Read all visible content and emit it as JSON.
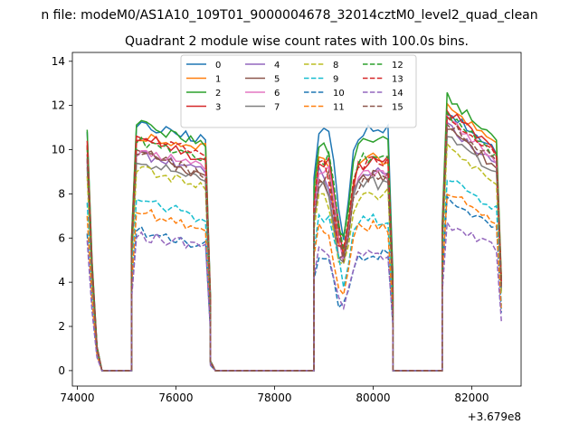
{
  "chart_data": {
    "type": "line",
    "suptitle": "n file: modeM0/AS1A10_109T01_9000004678_32014cztM0_level2_quad_clean",
    "title": "Quadrant 2 module wise count rates with 100.0s bins.",
    "xlabel": "",
    "ylabel": "",
    "x_offset_label": "+3.679e8",
    "xlim": [
      73900,
      83000
    ],
    "ylim": [
      -0.7,
      14.4
    ],
    "x_ticks": [
      74000,
      76000,
      78000,
      80000,
      82000
    ],
    "x_tick_labels": [
      "74000",
      "76000",
      "78000",
      "80000",
      "82000"
    ],
    "y_ticks": [
      0,
      2,
      4,
      6,
      8,
      10,
      12,
      14
    ],
    "y_tick_labels": [
      "0",
      "2",
      "4",
      "6",
      "8",
      "10",
      "12",
      "14"
    ],
    "grid": false,
    "legend": {
      "position": "top-center",
      "columns": 4
    },
    "segments": [
      {
        "x_start": 74200,
        "x_end": 75100,
        "n": 10
      },
      {
        "x_start": 75100,
        "x_end": 76700,
        "n": 17
      },
      {
        "x_start": 76700,
        "x_end": 78800,
        "n": 22
      },
      {
        "x_start": 78800,
        "x_end": 80400,
        "n": 17
      },
      {
        "x_start": 80400,
        "x_end": 81400,
        "n": 11
      },
      {
        "x_start": 81400,
        "x_end": 82600,
        "n": 13
      }
    ],
    "series": [
      {
        "name": "0",
        "color": "#1f77b4",
        "dash": "solid",
        "peaks": [
          10.8,
          11.2,
          10.9,
          11.4
        ]
      },
      {
        "name": "1",
        "color": "#ff7f0e",
        "dash": "solid",
        "peaks": [
          10.2,
          10.8,
          9.6,
          11.7
        ]
      },
      {
        "name": "2",
        "color": "#2ca02c",
        "dash": "solid",
        "peaks": [
          10.9,
          10.9,
          10.4,
          12.0
        ]
      },
      {
        "name": "3",
        "color": "#d62728",
        "dash": "solid",
        "peaks": [
          10.4,
          10.0,
          9.4,
          11.4
        ]
      },
      {
        "name": "4",
        "color": "#9467bd",
        "dash": "solid",
        "peaks": [
          9.5,
          9.7,
          9.0,
          10.7
        ]
      },
      {
        "name": "5",
        "color": "#8c564b",
        "dash": "solid",
        "peaks": [
          9.8,
          9.3,
          8.8,
          10.6
        ]
      },
      {
        "name": "6",
        "color": "#e377c2",
        "dash": "solid",
        "peaks": [
          9.5,
          9.9,
          8.8,
          11.0
        ]
      },
      {
        "name": "7",
        "color": "#7f7f7f",
        "dash": "solid",
        "peaks": [
          9.2,
          9.1,
          8.5,
          10.3
        ]
      },
      {
        "name": "8",
        "color": "#bcbd22",
        "dash": "dashed",
        "peaks": [
          8.8,
          9.0,
          8.0,
          9.8
        ]
      },
      {
        "name": "9",
        "color": "#17becf",
        "dash": "dashed",
        "peaks": [
          7.6,
          7.2,
          6.8,
          8.4
        ]
      },
      {
        "name": "10",
        "color": "#1f77b4",
        "dash": "dashed",
        "peaks": [
          6.2,
          6.0,
          5.2,
          7.5
        ]
      },
      {
        "name": "11",
        "color": "#ff7f0e",
        "dash": "dashed",
        "peaks": [
          7.0,
          6.8,
          6.5,
          7.8
        ]
      },
      {
        "name": "12",
        "color": "#2ca02c",
        "dash": "dashed",
        "peaks": [
          10.1,
          10.1,
          9.7,
          11.2
        ]
      },
      {
        "name": "13",
        "color": "#d62728",
        "dash": "dashed",
        "peaks": [
          10.2,
          10.5,
          9.4,
          11.2
        ]
      },
      {
        "name": "14",
        "color": "#9467bd",
        "dash": "dashed",
        "peaks": [
          5.9,
          6.0,
          5.3,
          6.4
        ]
      },
      {
        "name": "15",
        "color": "#8c564b",
        "dash": "dashed",
        "peaks": [
          9.6,
          9.4,
          8.6,
          10.9
        ]
      }
    ]
  }
}
